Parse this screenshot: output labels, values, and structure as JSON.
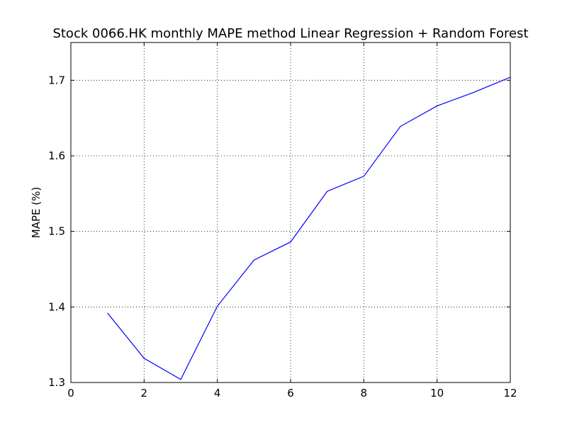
{
  "chart_data": {
    "type": "line",
    "title": "Stock 0066.HK monthly MAPE method Linear Regression + Random Forest",
    "xlabel": "",
    "ylabel": "MAPE (%)",
    "xlim": [
      0,
      12
    ],
    "ylim": [
      1.3,
      1.75
    ],
    "xticks": [
      "0",
      "2",
      "4",
      "6",
      "8",
      "10",
      "12"
    ],
    "yticks": [
      "1.3",
      "1.4",
      "1.5",
      "1.6",
      "1.7"
    ],
    "grid": true,
    "series": [
      {
        "color": "#0000ff",
        "x": [
          1,
          2,
          3,
          4,
          5,
          6,
          7,
          8,
          9,
          10,
          11,
          12
        ],
        "values": [
          1.392,
          1.332,
          1.304,
          1.401,
          1.462,
          1.486,
          1.553,
          1.573,
          1.639,
          1.666,
          1.684,
          1.704
        ]
      }
    ]
  }
}
